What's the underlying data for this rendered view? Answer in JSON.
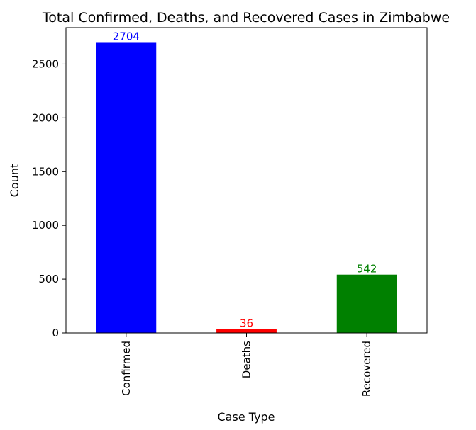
{
  "chart_data": {
    "type": "bar",
    "title": "Total Confirmed, Deaths, and Recovered Cases in Zimbabwe",
    "xlabel": "Case Type",
    "ylabel": "Count",
    "categories": [
      "Confirmed",
      "Deaths",
      "Recovered"
    ],
    "values": [
      2704,
      36,
      542
    ],
    "value_labels": [
      "2704",
      "36",
      "542"
    ],
    "colors": [
      "#0000ff",
      "#ff0000",
      "#008000"
    ],
    "ylim": [
      0,
      2838.9
    ],
    "yticks": [
      0,
      500,
      1000,
      1500,
      2000,
      2500
    ],
    "ytick_labels": [
      "0",
      "500",
      "1000",
      "1500",
      "2000",
      "2500"
    ],
    "grid": false,
    "legend": false
  }
}
